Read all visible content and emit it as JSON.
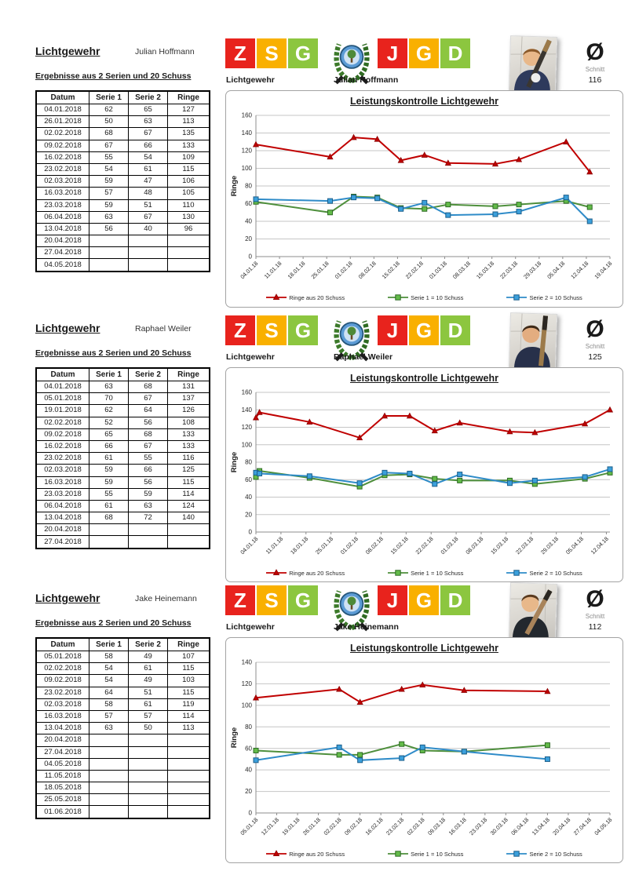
{
  "sections": [
    {
      "title": "Lichtgewehr",
      "student": "Julian Hoffmann",
      "subtitle": "Ergebnisse aus 2 Serien und 20 Schuss",
      "table": {
        "headers": [
          "Datum",
          "Serie 1",
          "Serie 2",
          "Ringe"
        ],
        "rows": [
          [
            "04.01.2018",
            "62",
            "65",
            "127"
          ],
          [
            "26.01.2018",
            "50",
            "63",
            "113"
          ],
          [
            "02.02.2018",
            "68",
            "67",
            "135"
          ],
          [
            "09.02.2018",
            "67",
            "66",
            "133"
          ],
          [
            "16.02.2018",
            "55",
            "54",
            "109"
          ],
          [
            "23.02.2018",
            "54",
            "61",
            "115"
          ],
          [
            "02.03.2018",
            "59",
            "47",
            "106"
          ],
          [
            "16.03.2018",
            "57",
            "48",
            "105"
          ],
          [
            "23.03.2018",
            "59",
            "51",
            "110"
          ],
          [
            "06.04.2018",
            "63",
            "67",
            "130"
          ],
          [
            "13.04.2018",
            "56",
            "40",
            "96"
          ],
          [
            "20.04.2018",
            "",
            "",
            ""
          ],
          [
            "27.04.2018",
            "",
            "",
            ""
          ],
          [
            "04.05.2018",
            "",
            "",
            ""
          ]
        ]
      },
      "banner": {
        "left_letters": [
          {
            "char": "Z",
            "color": "#E8231D"
          },
          {
            "char": "S",
            "color": "#F9B000"
          },
          {
            "char": "G",
            "color": "#8CC63F"
          }
        ],
        "right_letters": [
          {
            "char": "J",
            "color": "#E8231D"
          },
          {
            "char": "G",
            "color": "#F9B000"
          },
          {
            "char": "D",
            "color": "#8CC63F"
          }
        ],
        "label": "Lichtgewehr",
        "name": "Julian Hoffmann"
      },
      "average": {
        "symbol": "Ø",
        "label": "Schnitt",
        "value": "116"
      }
    },
    {
      "title": "Lichtgewehr",
      "student": "Raphael Weiler",
      "subtitle": "Ergebnisse aus 2 Serien und 20 Schuss",
      "table": {
        "headers": [
          "Datum",
          "Serie 1",
          "Serie 2",
          "Ringe"
        ],
        "rows": [
          [
            "04.01.2018",
            "63",
            "68",
            "131"
          ],
          [
            "05.01.2018",
            "70",
            "67",
            "137"
          ],
          [
            "19.01.2018",
            "62",
            "64",
            "126"
          ],
          [
            "02.02.2018",
            "52",
            "56",
            "108"
          ],
          [
            "09.02.2018",
            "65",
            "68",
            "133"
          ],
          [
            "16.02.2018",
            "66",
            "67",
            "133"
          ],
          [
            "23.02.2018",
            "61",
            "55",
            "116"
          ],
          [
            "02.03.2018",
            "59",
            "66",
            "125"
          ],
          [
            "16.03.2018",
            "59",
            "56",
            "115"
          ],
          [
            "23.03.2018",
            "55",
            "59",
            "114"
          ],
          [
            "06.04.2018",
            "61",
            "63",
            "124"
          ],
          [
            "13.04.2018",
            "68",
            "72",
            "140"
          ],
          [
            "20.04.2018",
            "",
            "",
            ""
          ],
          [
            "27.04.2018",
            "",
            "",
            ""
          ]
        ]
      },
      "banner": {
        "left_letters": [
          {
            "char": "Z",
            "color": "#E8231D"
          },
          {
            "char": "S",
            "color": "#F9B000"
          },
          {
            "char": "G",
            "color": "#8CC63F"
          }
        ],
        "right_letters": [
          {
            "char": "J",
            "color": "#E8231D"
          },
          {
            "char": "G",
            "color": "#F9B000"
          },
          {
            "char": "D",
            "color": "#8CC63F"
          }
        ],
        "label": "Lichtgewehr",
        "name": "Raphael Weiler"
      },
      "average": {
        "symbol": "Ø",
        "label": "Schnitt",
        "value": "125"
      }
    },
    {
      "title": "Lichtgewehr",
      "student": "Jake Heinemann",
      "subtitle": "Ergebnisse aus 2 Serien und 20 Schuss",
      "table": {
        "headers": [
          "Datum",
          "Serie 1",
          "Serie 2",
          "Ringe"
        ],
        "rows": [
          [
            "05.01.2018",
            "58",
            "49",
            "107"
          ],
          [
            "02.02.2018",
            "54",
            "61",
            "115"
          ],
          [
            "09.02.2018",
            "54",
            "49",
            "103"
          ],
          [
            "23.02.2018",
            "64",
            "51",
            "115"
          ],
          [
            "02.03.2018",
            "58",
            "61",
            "119"
          ],
          [
            "16.03.2018",
            "57",
            "57",
            "114"
          ],
          [
            "13.04.2018",
            "63",
            "50",
            "113"
          ],
          [
            "20.04.2018",
            "",
            "",
            ""
          ],
          [
            "27.04.2018",
            "",
            "",
            ""
          ],
          [
            "04.05.2018",
            "",
            "",
            ""
          ],
          [
            "11.05.2018",
            "",
            "",
            ""
          ],
          [
            "18.05.2018",
            "",
            "",
            ""
          ],
          [
            "25.05.2018",
            "",
            "",
            ""
          ],
          [
            "01.06.2018",
            "",
            "",
            ""
          ]
        ]
      },
      "banner": {
        "left_letters": [
          {
            "char": "Z",
            "color": "#E8231D"
          },
          {
            "char": "S",
            "color": "#F9B000"
          },
          {
            "char": "G",
            "color": "#8CC63F"
          }
        ],
        "right_letters": [
          {
            "char": "J",
            "color": "#E8231D"
          },
          {
            "char": "G",
            "color": "#F9B000"
          },
          {
            "char": "D",
            "color": "#8CC63F"
          }
        ],
        "label": "Lichtgewehr",
        "name": "Jake Heinemann"
      },
      "average": {
        "symbol": "Ø",
        "label": "Schnitt",
        "value": "112"
      }
    }
  ],
  "chart_data": [
    {
      "type": "line",
      "title": "Leistungskontrolle Lichtgewehr",
      "ylabel": "Ringe",
      "ylim": [
        0,
        160
      ],
      "ytick_step": 20,
      "grid": true,
      "legend_position": "bottom",
      "x_tick_labels": [
        "04.01.18",
        "11.01.18",
        "18.01.18",
        "25.01.18",
        "01.02.18",
        "08.02.18",
        "15.02.18",
        "22.02.18",
        "01.03.18",
        "08.03.18",
        "15.03.18",
        "22.03.18",
        "29.03.18",
        "05.04.18",
        "12.04.18",
        "19.04.18"
      ],
      "series": [
        {
          "name": "Ringe aus 20 Schuss",
          "color": "#C00000",
          "marker": "triangle",
          "marker_fill": "#C00000",
          "marker_stroke": "#8B0000",
          "dates": [
            "04.01.2018",
            "26.01.2018",
            "02.02.2018",
            "09.02.2018",
            "16.02.2018",
            "23.02.2018",
            "02.03.2018",
            "16.03.2018",
            "23.03.2018",
            "06.04.2018",
            "13.04.2018"
          ],
          "values": [
            127,
            113,
            135,
            133,
            109,
            115,
            106,
            105,
            110,
            130,
            96
          ]
        },
        {
          "name": "Serie 1 = 10 Schuss",
          "color": "#4E8F3C",
          "marker": "square",
          "marker_fill": "#63BB49",
          "marker_stroke": "#2E6B24",
          "dates": [
            "04.01.2018",
            "26.01.2018",
            "02.02.2018",
            "09.02.2018",
            "16.02.2018",
            "23.02.2018",
            "02.03.2018",
            "16.03.2018",
            "23.03.2018",
            "06.04.2018",
            "13.04.2018"
          ],
          "values": [
            62,
            50,
            68,
            67,
            55,
            54,
            59,
            57,
            59,
            63,
            56
          ]
        },
        {
          "name": "Serie 2 = 10 Schuss",
          "color": "#2E8BC8",
          "marker": "square",
          "marker_fill": "#3BA0DC",
          "marker_stroke": "#1C5E8A",
          "dates": [
            "04.01.2018",
            "26.01.2018",
            "02.02.2018",
            "09.02.2018",
            "16.02.2018",
            "23.02.2018",
            "02.03.2018",
            "16.03.2018",
            "23.03.2018",
            "06.04.2018",
            "13.04.2018"
          ],
          "values": [
            65,
            63,
            67,
            66,
            54,
            61,
            47,
            48,
            51,
            67,
            40
          ]
        }
      ]
    },
    {
      "type": "line",
      "title": "Leistungskontrolle Lichtgewehr",
      "ylabel": "Ringe",
      "ylim": [
        0,
        160
      ],
      "ytick_step": 20,
      "grid": true,
      "legend_position": "bottom",
      "x_tick_labels": [
        "04.01.18",
        "11.01.18",
        "18.01.18",
        "25.01.18",
        "01.02.18",
        "08.02.18",
        "15.02.18",
        "22.02.18",
        "01.03.18",
        "08.03.18",
        "15.03.18",
        "22.03.18",
        "29.03.18",
        "05.04.18",
        "12.04.18"
      ],
      "series": [
        {
          "name": "Ringe aus 20 Schuss",
          "color": "#C00000",
          "marker": "triangle",
          "marker_fill": "#C00000",
          "marker_stroke": "#8B0000",
          "dates": [
            "04.01.2018",
            "05.01.2018",
            "19.01.2018",
            "02.02.2018",
            "09.02.2018",
            "16.02.2018",
            "23.02.2018",
            "02.03.2018",
            "16.03.2018",
            "23.03.2018",
            "06.04.2018",
            "13.04.2018"
          ],
          "values": [
            131,
            137,
            126,
            108,
            133,
            133,
            116,
            125,
            115,
            114,
            124,
            140
          ]
        },
        {
          "name": "Serie 1 = 10 Schuss",
          "color": "#4E8F3C",
          "marker": "square",
          "marker_fill": "#63BB49",
          "marker_stroke": "#2E6B24",
          "dates": [
            "04.01.2018",
            "05.01.2018",
            "19.01.2018",
            "02.02.2018",
            "09.02.2018",
            "16.02.2018",
            "23.02.2018",
            "02.03.2018",
            "16.03.2018",
            "23.03.2018",
            "06.04.2018",
            "13.04.2018"
          ],
          "values": [
            63,
            70,
            62,
            52,
            65,
            66,
            61,
            59,
            59,
            55,
            61,
            68
          ]
        },
        {
          "name": "Serie 2 = 10 Schuss",
          "color": "#2E8BC8",
          "marker": "square",
          "marker_fill": "#3BA0DC",
          "marker_stroke": "#1C5E8A",
          "dates": [
            "04.01.2018",
            "05.01.2018",
            "19.01.2018",
            "02.02.2018",
            "09.02.2018",
            "16.02.2018",
            "23.02.2018",
            "02.03.2018",
            "16.03.2018",
            "23.03.2018",
            "06.04.2018",
            "13.04.2018"
          ],
          "values": [
            68,
            67,
            64,
            56,
            68,
            67,
            55,
            66,
            56,
            59,
            63,
            72
          ]
        }
      ]
    },
    {
      "type": "line",
      "title": "Leistungskontrolle Lichtgewehr",
      "ylabel": "Ringe",
      "ylim": [
        0,
        140
      ],
      "ytick_step": 20,
      "grid": true,
      "legend_position": "bottom",
      "x_tick_labels": [
        "05.01.18",
        "12.01.18",
        "19.01.18",
        "26.01.18",
        "02.02.18",
        "09.02.18",
        "16.02.18",
        "23.02.18",
        "02.03.18",
        "09.03.18",
        "16.03.18",
        "23.03.18",
        "30.03.18",
        "06.04.18",
        "13.04.18",
        "20.04.18",
        "27.04.18",
        "04.05.18"
      ],
      "series": [
        {
          "name": "Ringe aus 20 Schuss",
          "color": "#C00000",
          "marker": "triangle",
          "marker_fill": "#C00000",
          "marker_stroke": "#8B0000",
          "dates": [
            "05.01.2018",
            "02.02.2018",
            "09.02.2018",
            "23.02.2018",
            "02.03.2018",
            "16.03.2018",
            "13.04.2018"
          ],
          "values": [
            107,
            115,
            103,
            115,
            119,
            114,
            113
          ]
        },
        {
          "name": "Serie 1 = 10 Schuss",
          "color": "#4E8F3C",
          "marker": "square",
          "marker_fill": "#63BB49",
          "marker_stroke": "#2E6B24",
          "dates": [
            "05.01.2018",
            "02.02.2018",
            "09.02.2018",
            "23.02.2018",
            "02.03.2018",
            "16.03.2018",
            "13.04.2018"
          ],
          "values": [
            58,
            54,
            54,
            64,
            58,
            57,
            63
          ]
        },
        {
          "name": "Serie 2 = 10 Schuss",
          "color": "#2E8BC8",
          "marker": "square",
          "marker_fill": "#3BA0DC",
          "marker_stroke": "#1C5E8A",
          "dates": [
            "05.01.2018",
            "02.02.2018",
            "09.02.2018",
            "23.02.2018",
            "02.03.2018",
            "16.03.2018",
            "13.04.2018"
          ],
          "values": [
            49,
            61,
            49,
            51,
            61,
            57,
            50
          ]
        }
      ]
    }
  ]
}
